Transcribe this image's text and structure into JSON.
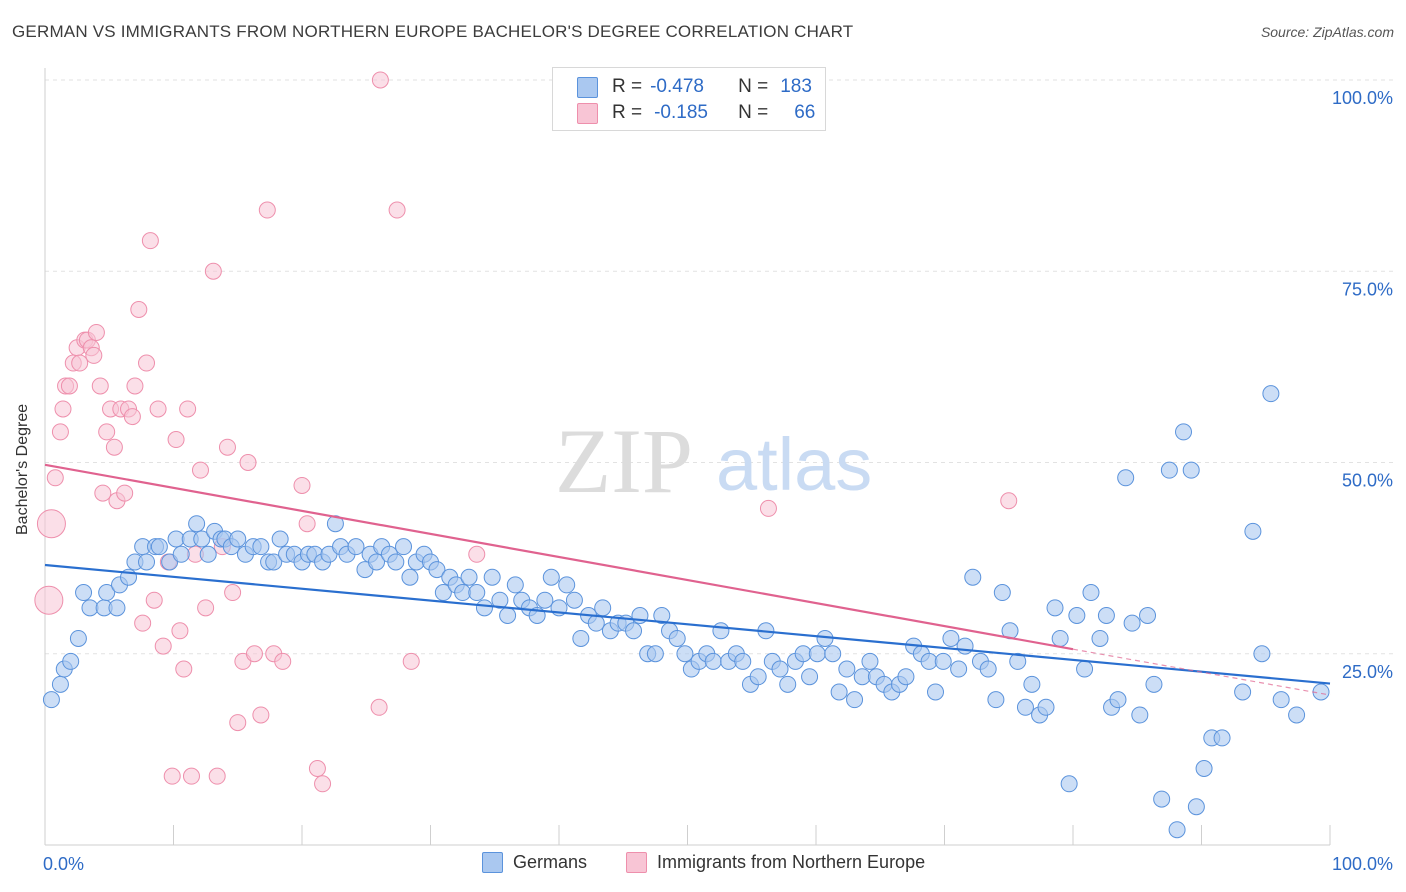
{
  "title": "GERMAN VS IMMIGRANTS FROM NORTHERN EUROPE BACHELOR'S DEGREE CORRELATION CHART",
  "source": "Source: ZipAtlas.com",
  "watermark": {
    "zip": "ZIP",
    "atlas": "atlas"
  },
  "legend": {
    "german": {
      "r_label": "R =",
      "r_value": "-0.478",
      "n_label": "N =",
      "n_value": "183"
    },
    "immigrants": {
      "r_label": "R =",
      "r_value": "-0.185",
      "n_label": "N =",
      "n_value": "66"
    }
  },
  "bottom_legend": {
    "german": "Germans",
    "immigrants": "Immigrants from Northern Europe"
  },
  "colors": {
    "german_fill": "#aac8f0",
    "german_stroke": "#5b93dc",
    "german_line": "#2a6fcf",
    "immigrant_fill": "#f8c5d5",
    "immigrant_stroke": "#ee8fac",
    "immigrant_line": "#e0628f",
    "axis_label": "#2e6bc6",
    "grid": "#e2e2e2"
  },
  "chart_data": {
    "type": "scatter",
    "title": "GERMAN VS IMMIGRANTS FROM NORTHERN EUROPE BACHELOR'S DEGREE CORRELATION CHART",
    "xlabel": "",
    "ylabel": "Bachelor's Degree",
    "xlim": [
      0,
      100
    ],
    "ylim": [
      0,
      100
    ],
    "x_tick_labels": [
      "0.0%",
      "100.0%"
    ],
    "y_tick_labels": [
      "25.0%",
      "50.0%",
      "75.0%",
      "100.0%"
    ],
    "y_ticks": [
      25,
      50,
      75,
      100
    ],
    "grid": true,
    "legend_position": "top-center",
    "series": [
      {
        "name": "Germans",
        "points": [
          [
            0.5,
            19
          ],
          [
            1.2,
            21
          ],
          [
            1.5,
            23
          ],
          [
            2,
            24
          ],
          [
            2.6,
            27
          ],
          [
            3,
            33
          ],
          [
            3.5,
            31
          ],
          [
            4.6,
            31
          ],
          [
            4.8,
            33
          ],
          [
            5.6,
            31
          ],
          [
            5.8,
            34
          ],
          [
            6.5,
            35
          ],
          [
            7,
            37
          ],
          [
            7.6,
            39
          ],
          [
            7.9,
            37
          ],
          [
            8.6,
            39
          ],
          [
            8.9,
            39
          ],
          [
            9.7,
            37
          ],
          [
            10.2,
            40
          ],
          [
            10.6,
            38
          ],
          [
            11.3,
            40
          ],
          [
            11.8,
            42
          ],
          [
            12.2,
            40
          ],
          [
            12.7,
            38
          ],
          [
            13.2,
            41
          ],
          [
            13.7,
            40
          ],
          [
            14,
            40
          ],
          [
            14.5,
            39
          ],
          [
            15,
            40
          ],
          [
            15.6,
            38
          ],
          [
            16.2,
            39
          ],
          [
            16.8,
            39
          ],
          [
            17.4,
            37
          ],
          [
            17.8,
            37
          ],
          [
            18.3,
            40
          ],
          [
            18.8,
            38
          ],
          [
            19.4,
            38
          ],
          [
            20,
            37
          ],
          [
            20.5,
            38
          ],
          [
            21,
            38
          ],
          [
            21.6,
            37
          ],
          [
            22.1,
            38
          ],
          [
            22.6,
            42
          ],
          [
            23,
            39
          ],
          [
            23.5,
            38
          ],
          [
            24.2,
            39
          ],
          [
            24.9,
            36
          ],
          [
            25.3,
            38
          ],
          [
            25.8,
            37
          ],
          [
            26.2,
            39
          ],
          [
            26.8,
            38
          ],
          [
            27.3,
            37
          ],
          [
            27.9,
            39
          ],
          [
            28.4,
            35
          ],
          [
            28.9,
            37
          ],
          [
            29.5,
            38
          ],
          [
            30,
            37
          ],
          [
            30.5,
            36
          ],
          [
            31,
            33
          ],
          [
            31.5,
            35
          ],
          [
            32,
            34
          ],
          [
            32.5,
            33
          ],
          [
            33,
            35
          ],
          [
            33.6,
            33
          ],
          [
            34.2,
            31
          ],
          [
            34.8,
            35
          ],
          [
            35.4,
            32
          ],
          [
            36,
            30
          ],
          [
            36.6,
            34
          ],
          [
            37.1,
            32
          ],
          [
            37.7,
            31
          ],
          [
            38.3,
            30
          ],
          [
            38.9,
            32
          ],
          [
            39.4,
            35
          ],
          [
            40,
            31
          ],
          [
            40.6,
            34
          ],
          [
            41.2,
            32
          ],
          [
            41.7,
            27
          ],
          [
            42.3,
            30
          ],
          [
            42.9,
            29
          ],
          [
            43.4,
            31
          ],
          [
            44,
            28
          ],
          [
            44.6,
            29
          ],
          [
            45.2,
            29
          ],
          [
            45.8,
            28
          ],
          [
            46.3,
            30
          ],
          [
            46.9,
            25
          ],
          [
            47.5,
            25
          ],
          [
            48,
            30
          ],
          [
            48.6,
            28
          ],
          [
            49.2,
            27
          ],
          [
            49.8,
            25
          ],
          [
            50.3,
            23
          ],
          [
            50.9,
            24
          ],
          [
            51.5,
            25
          ],
          [
            52,
            24
          ],
          [
            52.6,
            28
          ],
          [
            53.2,
            24
          ],
          [
            53.8,
            25
          ],
          [
            54.3,
            24
          ],
          [
            54.9,
            21
          ],
          [
            55.5,
            22
          ],
          [
            56.1,
            28
          ],
          [
            56.6,
            24
          ],
          [
            57.2,
            23
          ],
          [
            57.8,
            21
          ],
          [
            58.4,
            24
          ],
          [
            59,
            25
          ],
          [
            59.5,
            22
          ],
          [
            60.1,
            25
          ],
          [
            60.7,
            27
          ],
          [
            61.3,
            25
          ],
          [
            61.8,
            20
          ],
          [
            62.4,
            23
          ],
          [
            63,
            19
          ],
          [
            63.6,
            22
          ],
          [
            64.2,
            24
          ],
          [
            64.7,
            22
          ],
          [
            65.3,
            21
          ],
          [
            65.9,
            20
          ],
          [
            66.5,
            21
          ],
          [
            67,
            22
          ],
          [
            67.6,
            26
          ],
          [
            68.2,
            25
          ],
          [
            68.8,
            24
          ],
          [
            69.3,
            20
          ],
          [
            69.9,
            24
          ],
          [
            70.5,
            27
          ],
          [
            71.1,
            23
          ],
          [
            71.6,
            26
          ],
          [
            72.2,
            35
          ],
          [
            72.8,
            24
          ],
          [
            73.4,
            23
          ],
          [
            74,
            19
          ],
          [
            74.5,
            33
          ],
          [
            75.1,
            28
          ],
          [
            75.7,
            24
          ],
          [
            76.3,
            18
          ],
          [
            76.8,
            21
          ],
          [
            77.4,
            17
          ],
          [
            77.9,
            18
          ],
          [
            78.6,
            31
          ],
          [
            79,
            27
          ],
          [
            79.7,
            8
          ],
          [
            80.3,
            30
          ],
          [
            80.9,
            23
          ],
          [
            81.4,
            33
          ],
          [
            82.1,
            27
          ],
          [
            82.6,
            30
          ],
          [
            83,
            18
          ],
          [
            83.5,
            19
          ],
          [
            84.1,
            48
          ],
          [
            84.6,
            29
          ],
          [
            85.2,
            17
          ],
          [
            85.8,
            30
          ],
          [
            86.3,
            21
          ],
          [
            86.9,
            6
          ],
          [
            87.5,
            49
          ],
          [
            88.1,
            2
          ],
          [
            88.6,
            54
          ],
          [
            89.2,
            49
          ],
          [
            89.6,
            5
          ],
          [
            90.2,
            10
          ],
          [
            90.8,
            14
          ],
          [
            91.6,
            14
          ],
          [
            93.2,
            20
          ],
          [
            94,
            41
          ],
          [
            94.7,
            25
          ],
          [
            95.4,
            59
          ],
          [
            96.2,
            19
          ],
          [
            97.4,
            17
          ],
          [
            99.3,
            20
          ]
        ],
        "trend": [
          [
            0,
            36.6
          ],
          [
            100,
            21.1
          ]
        ]
      },
      {
        "name": "Immigrants from Northern Europe",
        "points": [
          [
            0.3,
            32
          ],
          [
            0.5,
            42
          ],
          [
            0.8,
            48
          ],
          [
            1.2,
            54
          ],
          [
            1.4,
            57
          ],
          [
            1.6,
            60
          ],
          [
            1.9,
            60
          ],
          [
            2.2,
            63
          ],
          [
            2.5,
            65
          ],
          [
            2.7,
            63
          ],
          [
            3.1,
            66
          ],
          [
            3.3,
            66
          ],
          [
            3.6,
            65
          ],
          [
            3.8,
            64
          ],
          [
            4,
            67
          ],
          [
            4.3,
            60
          ],
          [
            4.5,
            46
          ],
          [
            4.8,
            54
          ],
          [
            5.1,
            57
          ],
          [
            5.4,
            52
          ],
          [
            5.6,
            45
          ],
          [
            5.9,
            57
          ],
          [
            6.2,
            46
          ],
          [
            6.5,
            57
          ],
          [
            6.8,
            56
          ],
          [
            7,
            60
          ],
          [
            7.3,
            70
          ],
          [
            7.6,
            29
          ],
          [
            7.9,
            63
          ],
          [
            8.2,
            79
          ],
          [
            8.5,
            32
          ],
          [
            8.8,
            57
          ],
          [
            9.2,
            26
          ],
          [
            9.6,
            37
          ],
          [
            9.9,
            9
          ],
          [
            10.2,
            53
          ],
          [
            10.5,
            28
          ],
          [
            10.8,
            23
          ],
          [
            11.1,
            57
          ],
          [
            11.4,
            9
          ],
          [
            11.7,
            38
          ],
          [
            12.1,
            49
          ],
          [
            12.5,
            31
          ],
          [
            13.1,
            75
          ],
          [
            13.4,
            9
          ],
          [
            13.8,
            39
          ],
          [
            14.2,
            52
          ],
          [
            14.6,
            33
          ],
          [
            15,
            16
          ],
          [
            15.4,
            24
          ],
          [
            15.8,
            50
          ],
          [
            16.3,
            25
          ],
          [
            16.8,
            17
          ],
          [
            17.3,
            83
          ],
          [
            17.8,
            25
          ],
          [
            18.5,
            24
          ],
          [
            20,
            47
          ],
          [
            20.4,
            42
          ],
          [
            21.2,
            10
          ],
          [
            21.6,
            8
          ],
          [
            26,
            18
          ],
          [
            26.1,
            100
          ],
          [
            27.4,
            83
          ],
          [
            28.5,
            24
          ],
          [
            33.6,
            38
          ],
          [
            56.3,
            44
          ],
          [
            75,
            45
          ]
        ],
        "trend": [
          [
            0,
            49.7
          ],
          [
            80,
            25.6
          ]
        ],
        "trend_dashed_to": [
          100,
          19.6
        ]
      }
    ]
  }
}
